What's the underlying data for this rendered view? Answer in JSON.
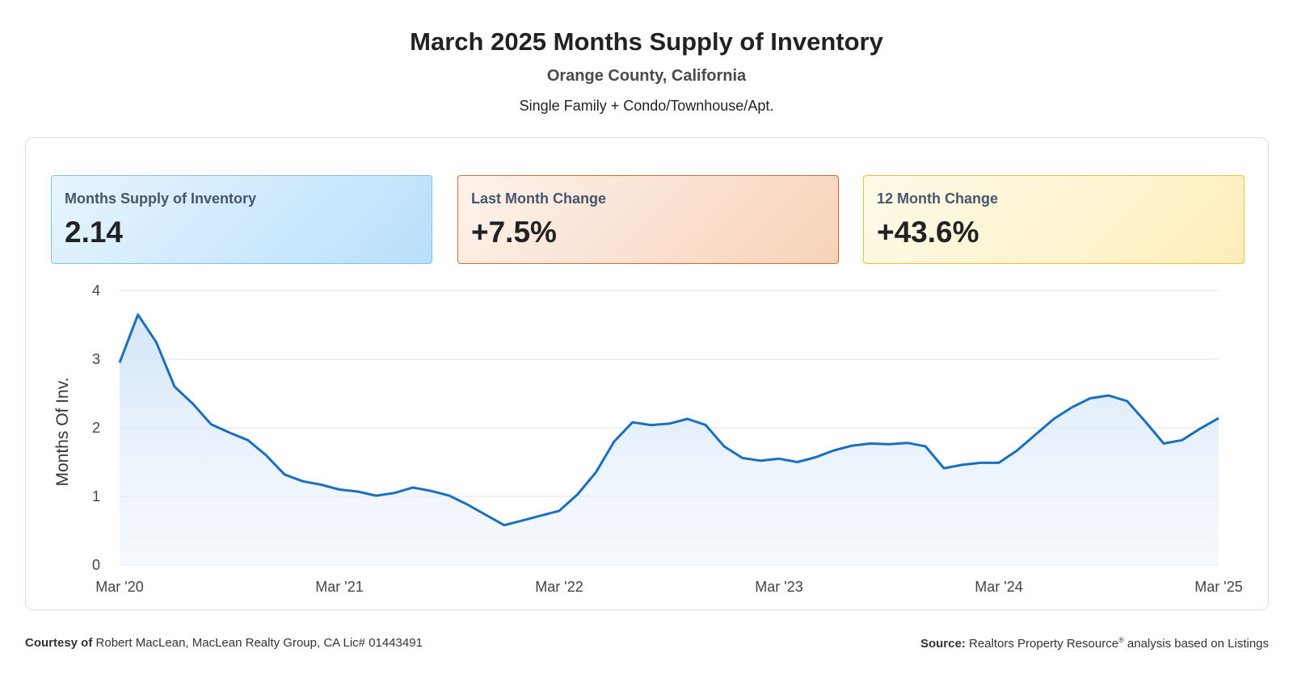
{
  "header": {
    "title": "March 2025 Months Supply of Inventory",
    "subtitle": "Orange County, California",
    "property_types": "Single Family + Condo/Townhouse/Apt."
  },
  "cards": [
    {
      "label": "Months Supply of Inventory",
      "value": "2.14",
      "accent": "#7ec3f0"
    },
    {
      "label": "Last Month Change",
      "value": "+7.5%",
      "accent": "#d96a2b"
    },
    {
      "label": "12 Month Change",
      "value": "+43.6%",
      "accent": "#f0c030"
    }
  ],
  "chart_data": {
    "type": "area",
    "ylabel": "Months Of Inv.",
    "xlabel": "",
    "ylim": [
      0,
      4
    ],
    "yticks": [
      "0",
      "1",
      "2",
      "3",
      "4"
    ],
    "xticks": [
      "Mar '20",
      "Mar '21",
      "Mar '22",
      "Mar '23",
      "Mar '24",
      "Mar '25"
    ],
    "grid": true,
    "line_color": "#1a6fc0",
    "series": [
      {
        "values": [
          2.95,
          3.65,
          3.25,
          2.6,
          2.35,
          2.05,
          1.93,
          1.82,
          1.6,
          1.32,
          1.22,
          1.17,
          1.1,
          1.07,
          1.01,
          1.05,
          1.13,
          1.08,
          1.01,
          0.88,
          0.73,
          0.58,
          0.65,
          0.72,
          0.79,
          1.03,
          1.35,
          1.8,
          2.08,
          2.04,
          2.06,
          2.13,
          2.04,
          1.73,
          1.56,
          1.52,
          1.55,
          1.5,
          1.57,
          1.67,
          1.74,
          1.77,
          1.76,
          1.78,
          1.73,
          1.41,
          1.46,
          1.49,
          1.49,
          1.67,
          1.9,
          2.13,
          2.3,
          2.43,
          2.47,
          2.39,
          2.09,
          1.77,
          1.82,
          1.99,
          2.14
        ]
      }
    ]
  },
  "footer": {
    "courtesy_label": "Courtesy of",
    "courtesy_text": "Robert MacLean, MacLean Realty Group, CA Lic# 01443491",
    "source_label": "Source:",
    "source_text_1": "Realtors Property Resource",
    "source_sup": "®",
    "source_text_2": "analysis based on Listings"
  }
}
